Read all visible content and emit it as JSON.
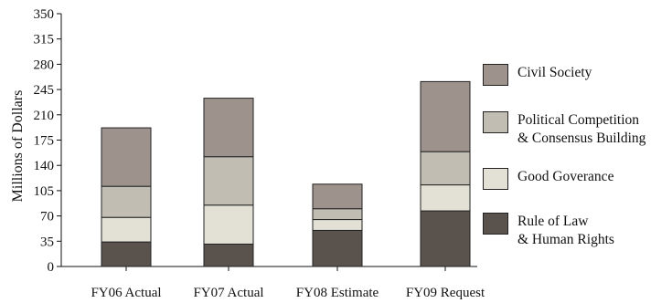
{
  "chart_data": {
    "type": "bar",
    "stacked": true,
    "categories": [
      "FY06 Actual",
      "FY07 Actual",
      "FY08 Estimate",
      "FY09 Request"
    ],
    "series": [
      {
        "name": "Rule of Law\n& Human Rights",
        "values": [
          34,
          31,
          50,
          77
        ],
        "color": "#5a524c"
      },
      {
        "name": "Good Goverance",
        "values": [
          34,
          54,
          15,
          36
        ],
        "color": "#e3e1d6"
      },
      {
        "name": "Political Competition\n& Consensus Building",
        "values": [
          43,
          67,
          15,
          46
        ],
        "color": "#c2bdb3"
      },
      {
        "name": "Civil Society",
        "values": [
          81,
          81,
          34,
          97
        ],
        "color": "#9e928d"
      }
    ],
    "xlabel": "",
    "ylabel": "Millions of Dollars",
    "ylim": [
      0,
      350
    ],
    "yticks": [
      0,
      35,
      70,
      105,
      140,
      175,
      210,
      245,
      280,
      315,
      350
    ],
    "legend_position": "right",
    "grid": false
  }
}
